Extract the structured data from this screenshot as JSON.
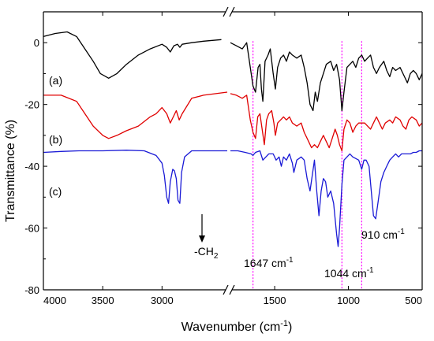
{
  "chart_data": {
    "type": "line",
    "xlabel": "Wavenumber (cm",
    "xlabel_sup": "-1",
    "xlabel_tail": ")",
    "ylabel": "Transmittance (%)",
    "ylim": [
      -80,
      10
    ],
    "yticks": [
      0,
      -20,
      -40,
      -60,
      -80
    ],
    "x_axis_broken": true,
    "x_segments": [
      {
        "xlim": [
          4000,
          2450
        ],
        "ticks": [
          4000,
          3500,
          3000
        ]
      },
      {
        "xlim": [
          1800,
          500
        ],
        "ticks": [
          1500,
          1000,
          500
        ]
      }
    ],
    "series": [
      {
        "name": "(a)",
        "color": "#000000",
        "points": [
          [
            4000,
            2
          ],
          [
            3900,
            3
          ],
          [
            3800,
            3.5
          ],
          [
            3720,
            2
          ],
          [
            3650,
            -2
          ],
          [
            3580,
            -6
          ],
          [
            3520,
            -10
          ],
          [
            3450,
            -11.5
          ],
          [
            3380,
            -10
          ],
          [
            3300,
            -7
          ],
          [
            3200,
            -4
          ],
          [
            3100,
            -2
          ],
          [
            3000,
            -0.5
          ],
          [
            2960,
            -1.5
          ],
          [
            2930,
            -3
          ],
          [
            2900,
            -1
          ],
          [
            2870,
            -0.5
          ],
          [
            2850,
            -1.5
          ],
          [
            2830,
            -0.5
          ],
          [
            2750,
            0
          ],
          [
            2650,
            0.5
          ],
          [
            2500,
            1
          ],
          [
            1800,
            0
          ],
          [
            1760,
            -1
          ],
          [
            1720,
            -2
          ],
          [
            1690,
            0
          ],
          [
            1665,
            -8
          ],
          [
            1647,
            -14
          ],
          [
            1630,
            -16
          ],
          [
            1612,
            -8
          ],
          [
            1600,
            -7
          ],
          [
            1590,
            -15
          ],
          [
            1580,
            -19
          ],
          [
            1565,
            -6
          ],
          [
            1545,
            -4
          ],
          [
            1530,
            -2
          ],
          [
            1510,
            -10
          ],
          [
            1495,
            -15
          ],
          [
            1480,
            -8
          ],
          [
            1460,
            -5
          ],
          [
            1440,
            -4
          ],
          [
            1420,
            -6
          ],
          [
            1400,
            -3
          ],
          [
            1380,
            -4
          ],
          [
            1350,
            -5
          ],
          [
            1320,
            -4
          ],
          [
            1300,
            -8
          ],
          [
            1280,
            -13
          ],
          [
            1260,
            -20
          ],
          [
            1240,
            -22
          ],
          [
            1225,
            -16
          ],
          [
            1210,
            -19
          ],
          [
            1190,
            -13
          ],
          [
            1170,
            -10
          ],
          [
            1150,
            -7
          ],
          [
            1120,
            -6
          ],
          [
            1100,
            -9
          ],
          [
            1080,
            -7
          ],
          [
            1060,
            -12
          ],
          [
            1044,
            -22
          ],
          [
            1030,
            -16
          ],
          [
            1010,
            -8
          ],
          [
            990,
            -7
          ],
          [
            970,
            -6
          ],
          [
            950,
            -8
          ],
          [
            930,
            -5
          ],
          [
            910,
            -4
          ],
          [
            890,
            -6
          ],
          [
            870,
            -5
          ],
          [
            850,
            -4
          ],
          [
            830,
            -8
          ],
          [
            810,
            -10
          ],
          [
            790,
            -8
          ],
          [
            760,
            -6
          ],
          [
            740,
            -9
          ],
          [
            720,
            -11
          ],
          [
            700,
            -8
          ],
          [
            680,
            -9
          ],
          [
            650,
            -8
          ],
          [
            620,
            -11
          ],
          [
            600,
            -13
          ],
          [
            580,
            -10
          ],
          [
            560,
            -9
          ],
          [
            540,
            -10
          ],
          [
            520,
            -12
          ],
          [
            500,
            -10
          ]
        ]
      },
      {
        "name": "(b)",
        "color": "#e00000",
        "points": [
          [
            4000,
            -17
          ],
          [
            3850,
            -17
          ],
          [
            3720,
            -19
          ],
          [
            3650,
            -23
          ],
          [
            3580,
            -27
          ],
          [
            3500,
            -30
          ],
          [
            3450,
            -31
          ],
          [
            3380,
            -30
          ],
          [
            3300,
            -28.5
          ],
          [
            3200,
            -27
          ],
          [
            3100,
            -24
          ],
          [
            3050,
            -23
          ],
          [
            3000,
            -21
          ],
          [
            2960,
            -23
          ],
          [
            2930,
            -26
          ],
          [
            2905,
            -24
          ],
          [
            2880,
            -22
          ],
          [
            2855,
            -25
          ],
          [
            2830,
            -23
          ],
          [
            2750,
            -18
          ],
          [
            2650,
            -17
          ],
          [
            2450,
            -16
          ],
          [
            1800,
            -16.5
          ],
          [
            1760,
            -17
          ],
          [
            1720,
            -18
          ],
          [
            1690,
            -17
          ],
          [
            1665,
            -25
          ],
          [
            1647,
            -29
          ],
          [
            1630,
            -31
          ],
          [
            1615,
            -24
          ],
          [
            1600,
            -23
          ],
          [
            1585,
            -28
          ],
          [
            1570,
            -33
          ],
          [
            1555,
            -25
          ],
          [
            1540,
            -23
          ],
          [
            1520,
            -22
          ],
          [
            1505,
            -26
          ],
          [
            1495,
            -30
          ],
          [
            1480,
            -26
          ],
          [
            1460,
            -25
          ],
          [
            1440,
            -24
          ],
          [
            1420,
            -25
          ],
          [
            1400,
            -24
          ],
          [
            1380,
            -26
          ],
          [
            1350,
            -27
          ],
          [
            1320,
            -26
          ],
          [
            1300,
            -29
          ],
          [
            1270,
            -32
          ],
          [
            1250,
            -34
          ],
          [
            1230,
            -33
          ],
          [
            1210,
            -34
          ],
          [
            1190,
            -32
          ],
          [
            1170,
            -30
          ],
          [
            1150,
            -32
          ],
          [
            1130,
            -34
          ],
          [
            1110,
            -31
          ],
          [
            1090,
            -28
          ],
          [
            1075,
            -30
          ],
          [
            1060,
            -33
          ],
          [
            1044,
            -35
          ],
          [
            1030,
            -28
          ],
          [
            1010,
            -25
          ],
          [
            990,
            -26
          ],
          [
            970,
            -29
          ],
          [
            950,
            -27
          ],
          [
            930,
            -26
          ],
          [
            910,
            -26
          ],
          [
            890,
            -26
          ],
          [
            870,
            -27
          ],
          [
            850,
            -28
          ],
          [
            830,
            -26
          ],
          [
            810,
            -24
          ],
          [
            790,
            -26
          ],
          [
            770,
            -28
          ],
          [
            750,
            -26
          ],
          [
            720,
            -25
          ],
          [
            700,
            -26
          ],
          [
            680,
            -24
          ],
          [
            650,
            -25
          ],
          [
            630,
            -27
          ],
          [
            610,
            -28
          ],
          [
            590,
            -25
          ],
          [
            570,
            -24
          ],
          [
            540,
            -25
          ],
          [
            520,
            -27
          ],
          [
            500,
            -26
          ]
        ]
      },
      {
        "name": "(c)",
        "color": "#1a1ad6",
        "points": [
          [
            4000,
            -35.5
          ],
          [
            3850,
            -35.2
          ],
          [
            3700,
            -35
          ],
          [
            3500,
            -35
          ],
          [
            3300,
            -34.8
          ],
          [
            3150,
            -35
          ],
          [
            3050,
            -36.5
          ],
          [
            3000,
            -39
          ],
          [
            2980,
            -43
          ],
          [
            2960,
            -50
          ],
          [
            2945,
            -52
          ],
          [
            2930,
            -45
          ],
          [
            2910,
            -41
          ],
          [
            2895,
            -41.5
          ],
          [
            2880,
            -44
          ],
          [
            2865,
            -51
          ],
          [
            2850,
            -52
          ],
          [
            2835,
            -42
          ],
          [
            2810,
            -37
          ],
          [
            2750,
            -35
          ],
          [
            2600,
            -35
          ],
          [
            2450,
            -35
          ],
          [
            1800,
            -35
          ],
          [
            1750,
            -35
          ],
          [
            1700,
            -35.5
          ],
          [
            1660,
            -36
          ],
          [
            1647,
            -36.5
          ],
          [
            1630,
            -35.5
          ],
          [
            1600,
            -35
          ],
          [
            1580,
            -38
          ],
          [
            1560,
            -37
          ],
          [
            1540,
            -36
          ],
          [
            1510,
            -36
          ],
          [
            1490,
            -38
          ],
          [
            1470,
            -37
          ],
          [
            1455,
            -40
          ],
          [
            1440,
            -37
          ],
          [
            1420,
            -38
          ],
          [
            1400,
            -36
          ],
          [
            1380,
            -39
          ],
          [
            1370,
            -42
          ],
          [
            1350,
            -38
          ],
          [
            1320,
            -37
          ],
          [
            1300,
            -38
          ],
          [
            1280,
            -44
          ],
          [
            1260,
            -48
          ],
          [
            1245,
            -43
          ],
          [
            1230,
            -38
          ],
          [
            1215,
            -48
          ],
          [
            1200,
            -56
          ],
          [
            1185,
            -48
          ],
          [
            1170,
            -44
          ],
          [
            1155,
            -45
          ],
          [
            1140,
            -50
          ],
          [
            1120,
            -48
          ],
          [
            1100,
            -52
          ],
          [
            1080,
            -62
          ],
          [
            1070,
            -66
          ],
          [
            1060,
            -60
          ],
          [
            1044,
            -46
          ],
          [
            1030,
            -38
          ],
          [
            1010,
            -37
          ],
          [
            990,
            -36
          ],
          [
            970,
            -37
          ],
          [
            950,
            -37.5
          ],
          [
            930,
            -38
          ],
          [
            910,
            -41
          ],
          [
            895,
            -38
          ],
          [
            880,
            -38
          ],
          [
            860,
            -40
          ],
          [
            845,
            -48
          ],
          [
            830,
            -56
          ],
          [
            815,
            -57
          ],
          [
            800,
            -52
          ],
          [
            780,
            -45
          ],
          [
            760,
            -42
          ],
          [
            740,
            -40
          ],
          [
            720,
            -38
          ],
          [
            700,
            -37
          ],
          [
            680,
            -36
          ],
          [
            660,
            -37
          ],
          [
            640,
            -36
          ],
          [
            620,
            -36
          ],
          [
            600,
            -36
          ],
          [
            580,
            -36
          ],
          [
            560,
            -35.5
          ],
          [
            540,
            -35.5
          ],
          [
            520,
            -35
          ],
          [
            500,
            -35
          ]
        ]
      }
    ],
    "guides": [
      {
        "x": 1647,
        "color": "#ff00ff"
      },
      {
        "x": 1044,
        "color": "#ff00ff"
      },
      {
        "x": 910,
        "color": "#ff00ff"
      }
    ],
    "annotations": {
      "ch2_label": "-CH",
      "ch2_sub": "2",
      "peak1647": "1647 cm",
      "peak1044": "1044 cm",
      "peak910": "910 cm",
      "inv_sup": "-1"
    }
  }
}
